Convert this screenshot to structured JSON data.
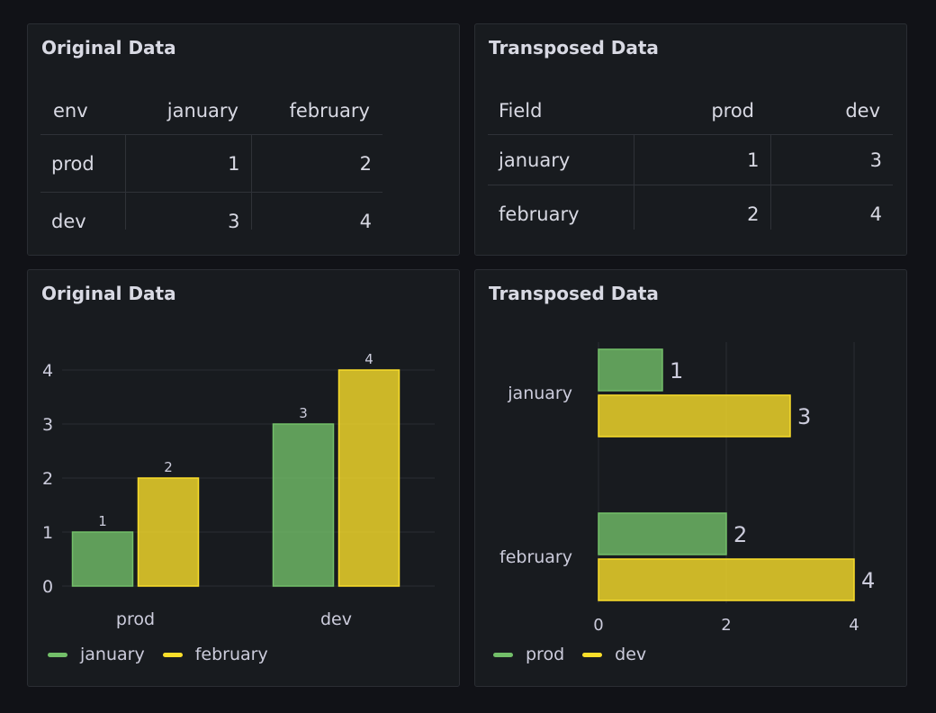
{
  "panels": {
    "table_original": {
      "title": "Original Data",
      "headers": [
        "env",
        "january",
        "february"
      ],
      "rows": [
        [
          "prod",
          "1",
          "2"
        ],
        [
          "dev",
          "3",
          "4"
        ]
      ]
    },
    "table_transposed": {
      "title": "Transposed Data",
      "headers": [
        "Field",
        "prod",
        "dev"
      ],
      "rows": [
        [
          "january",
          "1",
          "3"
        ],
        [
          "february",
          "2",
          "4"
        ]
      ]
    },
    "chart_original": {
      "title": "Original Data"
    },
    "chart_transposed": {
      "title": "Transposed Data"
    }
  },
  "chart_data": [
    {
      "type": "bar",
      "orientation": "vertical",
      "title": "Original Data",
      "categories": [
        "prod",
        "dev"
      ],
      "series": [
        {
          "name": "january",
          "values": [
            1,
            3
          ],
          "color": "#73bf69"
        },
        {
          "name": "february",
          "values": [
            2,
            4
          ],
          "color": "#fade2a"
        }
      ],
      "ylim": [
        0,
        4
      ],
      "yticks": [
        "0",
        "1",
        "2",
        "3",
        "4"
      ],
      "data_labels": true,
      "grid": true,
      "legend": "bottom-left"
    },
    {
      "type": "bar",
      "orientation": "horizontal",
      "title": "Transposed Data",
      "categories": [
        "january",
        "february"
      ],
      "series": [
        {
          "name": "prod",
          "values": [
            1,
            2
          ],
          "color": "#73bf69"
        },
        {
          "name": "dev",
          "values": [
            3,
            4
          ],
          "color": "#fade2a"
        }
      ],
      "xlim": [
        0,
        4
      ],
      "xticks": [
        "0",
        "2",
        "4"
      ],
      "data_labels": true,
      "grid": true,
      "legend": "bottom-left"
    }
  ]
}
